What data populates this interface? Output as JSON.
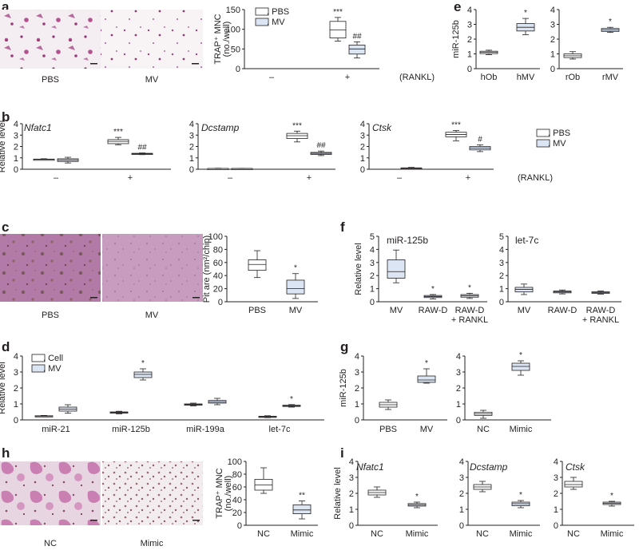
{
  "colors": {
    "pbs": "#ffffff",
    "mv": "#dbe5f3",
    "ink": "#231f20"
  },
  "panel_labels": {
    "a": "a",
    "b": "b",
    "c": "c",
    "d": "d",
    "e": "e",
    "f": "f",
    "g": "g",
    "h": "h",
    "i": "i"
  },
  "image_captions": {
    "a_left": "PBS",
    "a_right": "MV",
    "c_left": "PBS",
    "c_right": "MV",
    "h_left": "NC",
    "h_right": "Mimic"
  },
  "chart_data": [
    {
      "id": "a",
      "type": "box",
      "ylabel_line1": "TRAP⁺ MNC",
      "ylabel_line2": "(no./well)",
      "ylim": [
        0,
        150
      ],
      "yticks": [
        0,
        50,
        100,
        150
      ],
      "categories": [
        "–",
        "+"
      ],
      "group_label": "(RANKL)",
      "legend": [
        "PBS",
        "MV"
      ],
      "boxes": [
        {
          "cat": 1,
          "series": 0,
          "min": 70,
          "q1": 78,
          "median": 98,
          "q3": 120,
          "max": 130,
          "sig": "***"
        },
        {
          "cat": 1,
          "series": 1,
          "min": 27,
          "q1": 37,
          "median": 50,
          "q3": 60,
          "max": 68,
          "sig": "##"
        }
      ]
    },
    {
      "id": "e1",
      "type": "box",
      "ylabel": "miR-125b",
      "ylim": [
        0,
        4
      ],
      "yticks": [
        0,
        1,
        2,
        3,
        4
      ],
      "categories": [
        "hOb",
        "hMV"
      ],
      "boxes": [
        {
          "cat": 0,
          "series": 0,
          "min": 0.95,
          "q1": 1.02,
          "median": 1.1,
          "q3": 1.18,
          "max": 1.25,
          "sig": ""
        },
        {
          "cat": 1,
          "series": 1,
          "min": 2.3,
          "q1": 2.55,
          "median": 2.8,
          "q3": 3.05,
          "max": 3.4,
          "sig": "*"
        }
      ]
    },
    {
      "id": "e2",
      "type": "box",
      "ylim": [
        0,
        4
      ],
      "yticks": [
        0,
        1,
        2,
        3,
        4
      ],
      "categories": [
        "rOb",
        "rMV"
      ],
      "boxes": [
        {
          "cat": 0,
          "series": 0,
          "min": 0.65,
          "q1": 0.75,
          "median": 0.87,
          "q3": 1.0,
          "max": 1.15,
          "sig": ""
        },
        {
          "cat": 1,
          "series": 1,
          "min": 2.45,
          "q1": 2.52,
          "median": 2.62,
          "q3": 2.72,
          "max": 2.8,
          "sig": "*"
        }
      ]
    },
    {
      "id": "b1",
      "type": "box",
      "ylabel": "Relative level",
      "title": "Nfatc1",
      "title_italic": true,
      "ylim": [
        0,
        4
      ],
      "yticks": [
        0,
        1,
        2,
        3,
        4
      ],
      "categories": [
        "–",
        "+"
      ],
      "boxes": [
        {
          "cat": 0,
          "series": 0,
          "min": 0.82,
          "q1": 0.85,
          "median": 0.87,
          "q3": 0.89,
          "max": 0.92,
          "sig": ""
        },
        {
          "cat": 0,
          "series": 1,
          "min": 0.55,
          "q1": 0.68,
          "median": 0.8,
          "q3": 0.92,
          "max": 1.05,
          "sig": ""
        },
        {
          "cat": 1,
          "series": 0,
          "min": 2.15,
          "q1": 2.25,
          "median": 2.45,
          "q3": 2.6,
          "max": 2.8,
          "sig": "***"
        },
        {
          "cat": 1,
          "series": 1,
          "min": 1.28,
          "q1": 1.32,
          "median": 1.36,
          "q3": 1.4,
          "max": 1.43,
          "sig": "##"
        }
      ]
    },
    {
      "id": "b2",
      "type": "box",
      "title": "Dcstamp",
      "title_italic": true,
      "ylim": [
        0,
        4
      ],
      "yticks": [
        0,
        1,
        2,
        3,
        4
      ],
      "categories": [
        "–",
        "+"
      ],
      "boxes": [
        {
          "cat": 0,
          "series": 0,
          "min": 0.03,
          "q1": 0.05,
          "median": 0.06,
          "q3": 0.07,
          "max": 0.09,
          "sig": ""
        },
        {
          "cat": 0,
          "series": 1,
          "min": 0.04,
          "q1": 0.05,
          "median": 0.06,
          "q3": 0.07,
          "max": 0.08,
          "sig": ""
        },
        {
          "cat": 1,
          "series": 0,
          "min": 2.4,
          "q1": 2.7,
          "median": 2.95,
          "q3": 3.15,
          "max": 3.35,
          "sig": "***"
        },
        {
          "cat": 1,
          "series": 1,
          "min": 1.2,
          "q1": 1.3,
          "median": 1.4,
          "q3": 1.48,
          "max": 1.6,
          "sig": "##"
        }
      ]
    },
    {
      "id": "b3",
      "type": "box",
      "title": "Ctsk",
      "title_italic": true,
      "ylim": [
        0,
        4
      ],
      "yticks": [
        0,
        1,
        2,
        3,
        4
      ],
      "categories": [
        "–",
        "+"
      ],
      "group_label": "(RANKL)",
      "legend": [
        "PBS",
        "MV"
      ],
      "boxes": [
        {
          "cat": 0,
          "series": 1,
          "min": 0.02,
          "q1": 0.05,
          "median": 0.08,
          "q3": 0.12,
          "max": 0.16,
          "sig": ""
        },
        {
          "cat": 1,
          "series": 0,
          "min": 2.5,
          "q1": 2.85,
          "median": 3.05,
          "q3": 3.25,
          "max": 3.4,
          "sig": "***"
        },
        {
          "cat": 1,
          "series": 1,
          "min": 1.55,
          "q1": 1.7,
          "median": 1.85,
          "q3": 2.0,
          "max": 2.15,
          "sig": "#"
        }
      ]
    },
    {
      "id": "c",
      "type": "box",
      "ylabel": "Pit are (nm²/chip)",
      "ylim": [
        0,
        100
      ],
      "yticks": [
        0,
        20,
        40,
        60,
        80,
        100
      ],
      "categories": [
        "PBS",
        "MV"
      ],
      "boxes": [
        {
          "cat": 0,
          "series": 0,
          "min": 37,
          "q1": 48,
          "median": 57,
          "q3": 64,
          "max": 78,
          "sig": ""
        },
        {
          "cat": 1,
          "series": 1,
          "min": 5,
          "q1": 12,
          "median": 20,
          "q3": 33,
          "max": 43,
          "sig": "*"
        }
      ]
    },
    {
      "id": "f1",
      "type": "box",
      "ylabel": "Relative level",
      "title": "miR-125b",
      "ylim": [
        0,
        5
      ],
      "yticks": [
        0,
        1,
        2,
        3,
        4,
        5
      ],
      "categories": [
        "MV",
        "RAW-D",
        "RAW-D|+ RANKL"
      ],
      "boxes": [
        {
          "cat": 0,
          "series": 1,
          "min": 1.45,
          "q1": 1.8,
          "median": 2.3,
          "q3": 3.2,
          "max": 3.95,
          "sig": ""
        },
        {
          "cat": 1,
          "series": 1,
          "min": 0.22,
          "q1": 0.32,
          "median": 0.4,
          "q3": 0.48,
          "max": 0.55,
          "sig": "*"
        },
        {
          "cat": 2,
          "series": 1,
          "min": 0.25,
          "q1": 0.35,
          "median": 0.45,
          "q3": 0.55,
          "max": 0.65,
          "sig": "*"
        }
      ]
    },
    {
      "id": "f2",
      "type": "box",
      "title": "let-7c",
      "ylim": [
        0,
        5
      ],
      "yticks": [
        0,
        1,
        2,
        3,
        4,
        5
      ],
      "categories": [
        "MV",
        "RAW-D",
        "RAW-D|+ RANKL"
      ],
      "boxes": [
        {
          "cat": 0,
          "series": 1,
          "min": 0.55,
          "q1": 0.75,
          "median": 0.95,
          "q3": 1.1,
          "max": 1.35,
          "sig": ""
        },
        {
          "cat": 1,
          "series": 1,
          "min": 0.6,
          "q1": 0.68,
          "median": 0.75,
          "q3": 0.82,
          "max": 0.9,
          "sig": ""
        },
        {
          "cat": 2,
          "series": 1,
          "min": 0.58,
          "q1": 0.64,
          "median": 0.7,
          "q3": 0.76,
          "max": 0.82,
          "sig": ""
        }
      ]
    },
    {
      "id": "d",
      "type": "box",
      "ylabel": "Relative level",
      "ylim": [
        0,
        4
      ],
      "yticks": [
        0,
        1,
        2,
        3,
        4
      ],
      "categories": [
        "miR-21",
        "miR-125b",
        "miR-199a",
        "let-7c"
      ],
      "legend": [
        "Cell",
        "MV"
      ],
      "boxes": [
        {
          "cat": 0,
          "series": 0,
          "min": 0.2,
          "q1": 0.22,
          "median": 0.24,
          "q3": 0.26,
          "max": 0.28,
          "sig": ""
        },
        {
          "cat": 0,
          "series": 1,
          "min": 0.42,
          "q1": 0.55,
          "median": 0.68,
          "q3": 0.8,
          "max": 0.95,
          "sig": ""
        },
        {
          "cat": 1,
          "series": 0,
          "min": 0.38,
          "q1": 0.42,
          "median": 0.46,
          "q3": 0.5,
          "max": 0.54,
          "sig": ""
        },
        {
          "cat": 1,
          "series": 1,
          "min": 2.5,
          "q1": 2.65,
          "median": 2.85,
          "q3": 3.0,
          "max": 3.2,
          "sig": "*"
        },
        {
          "cat": 2,
          "series": 0,
          "min": 0.88,
          "q1": 0.92,
          "median": 0.96,
          "q3": 1.0,
          "max": 1.05,
          "sig": ""
        },
        {
          "cat": 2,
          "series": 1,
          "min": 0.95,
          "q1": 1.05,
          "median": 1.12,
          "q3": 1.22,
          "max": 1.35,
          "sig": ""
        },
        {
          "cat": 3,
          "series": 0,
          "min": 0.14,
          "q1": 0.17,
          "median": 0.2,
          "q3": 0.23,
          "max": 0.26,
          "sig": ""
        },
        {
          "cat": 3,
          "series": 1,
          "min": 0.8,
          "q1": 0.84,
          "median": 0.88,
          "q3": 0.92,
          "max": 0.96,
          "sig": "*"
        }
      ]
    },
    {
      "id": "g1",
      "type": "box",
      "ylabel": "miR-125b",
      "ylim": [
        0,
        4
      ],
      "yticks": [
        0,
        1,
        2,
        3,
        4
      ],
      "categories": [
        "PBS",
        "MV"
      ],
      "boxes": [
        {
          "cat": 0,
          "series": 0,
          "min": 0.65,
          "q1": 0.8,
          "median": 0.95,
          "q3": 1.1,
          "max": 1.25,
          "sig": ""
        },
        {
          "cat": 1,
          "series": 1,
          "min": 2.3,
          "q1": 2.35,
          "median": 2.5,
          "q3": 2.75,
          "max": 3.2,
          "sig": "*"
        }
      ]
    },
    {
      "id": "g2",
      "type": "box",
      "ylim": [
        0,
        4
      ],
      "yticks": [
        0,
        1,
        2,
        3,
        4
      ],
      "categories": [
        "NC",
        "Mimic"
      ],
      "boxes": [
        {
          "cat": 0,
          "series": 0,
          "min": 0.1,
          "q1": 0.28,
          "median": 0.38,
          "q3": 0.48,
          "max": 0.6,
          "sig": ""
        },
        {
          "cat": 1,
          "series": 1,
          "min": 2.8,
          "q1": 3.1,
          "median": 3.35,
          "q3": 3.55,
          "max": 3.7,
          "sig": "*"
        }
      ]
    },
    {
      "id": "h",
      "type": "box",
      "ylabel_line1": "TRAP⁺ MNC",
      "ylabel_line2": "(no./well)",
      "ylim": [
        0,
        100
      ],
      "yticks": [
        0,
        20,
        40,
        60,
        80,
        100
      ],
      "categories": [
        "NC",
        "Mimic"
      ],
      "boxes": [
        {
          "cat": 0,
          "series": 0,
          "min": 50,
          "q1": 55,
          "median": 63,
          "q3": 72,
          "max": 90,
          "sig": ""
        },
        {
          "cat": 1,
          "series": 1,
          "min": 10,
          "q1": 18,
          "median": 24,
          "q3": 32,
          "max": 38,
          "sig": "**"
        }
      ]
    },
    {
      "id": "i1",
      "type": "box",
      "ylabel": "Relative level",
      "title": "Nfatc1",
      "title_italic": true,
      "ylim": [
        0,
        4
      ],
      "yticks": [
        0,
        1,
        2,
        3,
        4
      ],
      "categories": [
        "NC",
        "Mimic"
      ],
      "boxes": [
        {
          "cat": 0,
          "series": 0,
          "min": 1.75,
          "q1": 1.9,
          "median": 2.05,
          "q3": 2.2,
          "max": 2.4,
          "sig": ""
        },
        {
          "cat": 1,
          "series": 1,
          "min": 1.1,
          "q1": 1.2,
          "median": 1.28,
          "q3": 1.36,
          "max": 1.45,
          "sig": "*"
        }
      ]
    },
    {
      "id": "i2",
      "type": "box",
      "title": "Dcstamp",
      "title_italic": true,
      "ylim": [
        0,
        4
      ],
      "yticks": [
        0,
        1,
        2,
        3,
        4
      ],
      "categories": [
        "NC",
        "Mimic"
      ],
      "boxes": [
        {
          "cat": 0,
          "series": 0,
          "min": 2.1,
          "q1": 2.25,
          "median": 2.4,
          "q3": 2.55,
          "max": 2.75,
          "sig": ""
        },
        {
          "cat": 1,
          "series": 1,
          "min": 1.1,
          "q1": 1.22,
          "median": 1.35,
          "q3": 1.45,
          "max": 1.55,
          "sig": "*"
        }
      ]
    },
    {
      "id": "i3",
      "type": "box",
      "title": "Ctsk",
      "title_italic": true,
      "ylim": [
        0,
        4
      ],
      "yticks": [
        0,
        1,
        2,
        3,
        4
      ],
      "categories": [
        "NC",
        "Mimic"
      ],
      "boxes": [
        {
          "cat": 0,
          "series": 0,
          "min": 2.25,
          "q1": 2.4,
          "median": 2.55,
          "q3": 2.75,
          "max": 3.0,
          "sig": ""
        },
        {
          "cat": 1,
          "series": 1,
          "min": 1.2,
          "q1": 1.3,
          "median": 1.38,
          "q3": 1.45,
          "max": 1.5,
          "sig": "*"
        }
      ]
    }
  ]
}
